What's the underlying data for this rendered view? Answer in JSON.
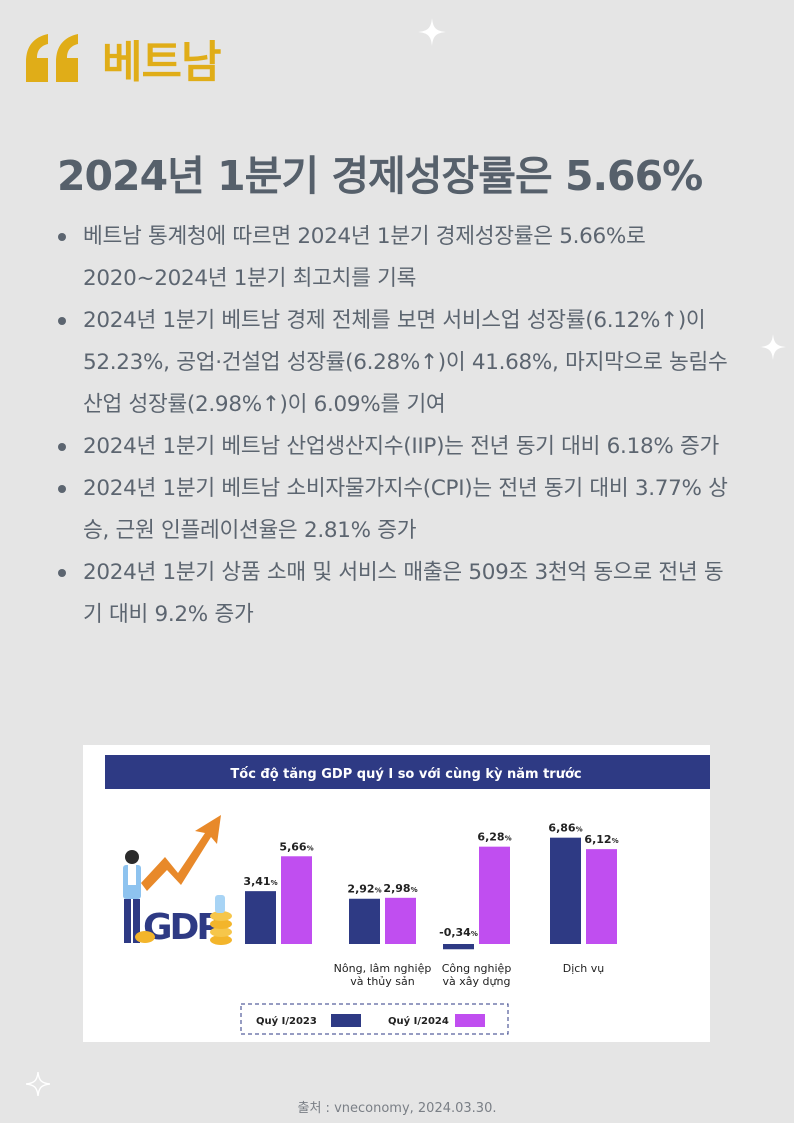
{
  "brand": "베트남",
  "title": "2024년 1분기 경제성장률은 5.66%",
  "bullets": [
    "베트남 통계청에 따르면 2024년 1분기 경제성장률은 5.66%로 2020~2024년 1분기 최고치를 기록",
    "2024년 1분기 베트남 경제 전체를 보면 서비스업 성장률(6.12%↑)이 52.23%, 공업·건설업 성장률(6.28%↑)이 41.68%, 마지막으로 농림수산업 성장률(2.98%↑)이 6.09%를 기여",
    " 2024년 1분기 베트남 산업생산지수(IIP)는 전년 동기 대비 6.18% 증가",
    "2024년 1분기 베트남 소비자물가지수(CPI)는 전년 동기 대비 3.77% 상승, 근원 인플레이션율은 2.81% 증가",
    "2024년 1분기 상품 소매 및 서비스 매출은 509조 3천억 동으로 전년 동기 대비 9.2% 증가"
  ],
  "source": "출처 : vneconomy, 2024.03.30.",
  "colors": {
    "accent": "#e0ad18",
    "background": "#e5e5e5",
    "text": "#5c6570",
    "banner": "#2e3a84",
    "series_2023": "#2e3a84",
    "series_2024": "#c04ef0"
  },
  "icons": [
    "quote-icon",
    "sparkle-icon",
    "gdp-growth-illustration"
  ],
  "chart_data": {
    "type": "bar",
    "title": "Tốc độ tăng GDP quý I so với cùng kỳ năm trước",
    "categories": [
      "GDP",
      "Nông, lâm nghiệp\nvà thủy sản",
      "Công nghiệp\nvà xây dựng",
      "Dịch vụ"
    ],
    "series": [
      {
        "name": "Quý I/2023",
        "values": [
          3.41,
          2.92,
          -0.34,
          6.86
        ],
        "labels": [
          "3,41",
          "2,92",
          "-0,34",
          "6,86"
        ]
      },
      {
        "name": "Quý I/2024",
        "values": [
          5.66,
          2.98,
          6.28,
          6.12
        ],
        "labels": [
          "5,66",
          "2,98",
          "6,28",
          "6,12"
        ]
      }
    ],
    "unit": "%",
    "legend": "bottom",
    "grid": false
  }
}
